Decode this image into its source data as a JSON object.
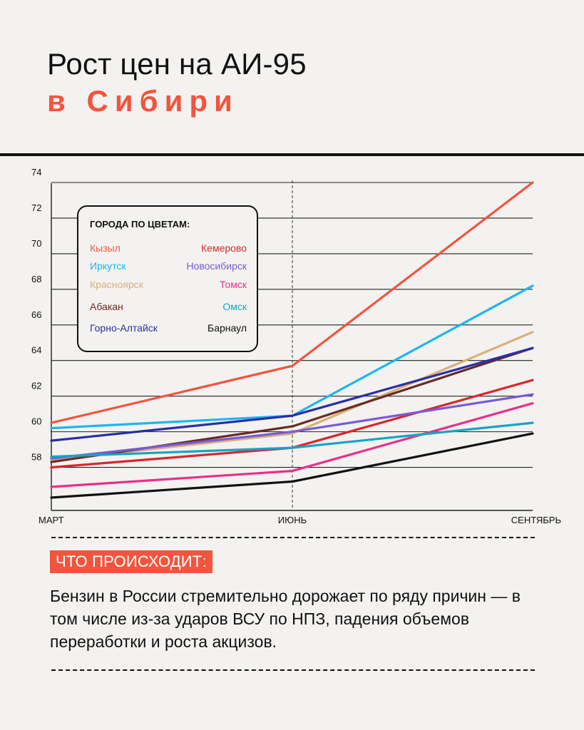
{
  "title": {
    "line1": "Рост цен на АИ-95",
    "line2": "в Сибири"
  },
  "colors": {
    "accent": "#f2553d",
    "grid": "#222222",
    "background": "#f3f2f0"
  },
  "legend": {
    "title": "ГОРОДА ПО ЦВЕТАМ:",
    "items": [
      {
        "label": "Кызыл",
        "color": "#f2553d"
      },
      {
        "label": "Кемерово",
        "color": "#d9262b"
      },
      {
        "label": "Иркутск",
        "color": "#1eb6f0"
      },
      {
        "label": "Новосибирск",
        "color": "#7a5bd6"
      },
      {
        "label": "Красноярск",
        "color": "#d8b07a"
      },
      {
        "label": "Томск",
        "color": "#e8308a"
      },
      {
        "label": "Абакан",
        "color": "#6b2a22"
      },
      {
        "label": "Омск",
        "color": "#19a3c4"
      },
      {
        "label": "Горно-Алтайск",
        "color": "#2a2fa8"
      },
      {
        "label": "Барнаул",
        "color": "#111111"
      }
    ]
  },
  "chart_data": {
    "type": "line",
    "categories": [
      "МАРТ",
      "ИЮНЬ",
      "СЕНТЯБРЬ"
    ],
    "y_ticks": [
      "58",
      "60",
      "62",
      "64",
      "66",
      "68",
      "70",
      "72",
      "74"
    ],
    "ylim": [
      55.5,
      74.5
    ],
    "grid": true,
    "legend_position": "top-left",
    "series": [
      {
        "name": "Кызыл",
        "color": "#f2553d",
        "values": [
          60.5,
          63.7,
          74.0
        ]
      },
      {
        "name": "Иркутск",
        "color": "#1eb6f0",
        "values": [
          60.2,
          60.9,
          68.2
        ]
      },
      {
        "name": "Красноярск",
        "color": "#d8b07a",
        "values": [
          58.4,
          59.9,
          65.6
        ]
      },
      {
        "name": "Абакан",
        "color": "#6b2a22",
        "values": [
          58.3,
          60.3,
          64.7
        ]
      },
      {
        "name": "Горно-Алтайск",
        "color": "#2a2fa8",
        "values": [
          59.5,
          60.9,
          64.7
        ]
      },
      {
        "name": "Кемерово",
        "color": "#d9262b",
        "values": [
          58.0,
          59.1,
          62.9
        ]
      },
      {
        "name": "Новосибирск",
        "color": "#7a5bd6",
        "values": [
          58.5,
          60.0,
          62.1
        ]
      },
      {
        "name": "Томск",
        "color": "#e8308a",
        "values": [
          56.9,
          57.8,
          61.6
        ]
      },
      {
        "name": "Омск",
        "color": "#19a3c4",
        "values": [
          58.6,
          59.1,
          60.5
        ]
      },
      {
        "name": "Барнаул",
        "color": "#111111",
        "values": [
          56.3,
          57.2,
          59.9
        ]
      }
    ]
  },
  "callout": {
    "label": "ЧТО ПРОИСХОДИТ:",
    "text": "Бензин в России стремительно дорожает по ряду причин — в том числе из-за ударов ВСУ по НПЗ, падения объемов переработки и роста акцизов."
  }
}
